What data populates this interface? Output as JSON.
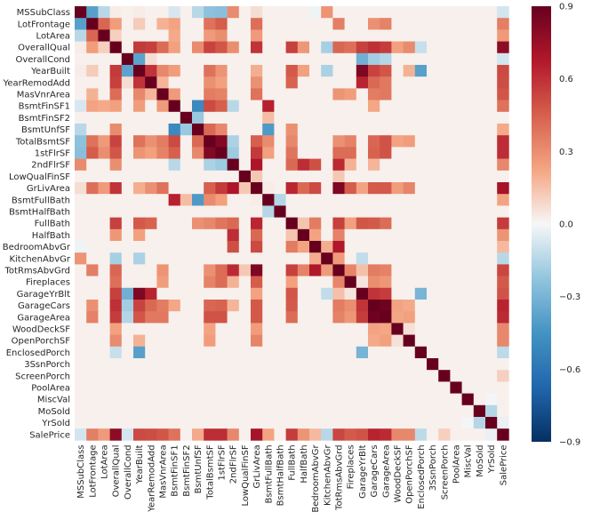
{
  "chart_data": {
    "type": "heatmap",
    "title": "",
    "xlabel": "",
    "ylabel": "",
    "labels": [
      "MSSubClass",
      "LotFrontage",
      "LotArea",
      "OverallQual",
      "OverallCond",
      "YearBuilt",
      "YearRemodAdd",
      "MasVnrArea",
      "BsmtFinSF1",
      "BsmtFinSF2",
      "BsmtUnfSF",
      "TotalBsmtSF",
      "1stFlrSF",
      "2ndFlrSF",
      "LowQualFinSF",
      "GrLivArea",
      "BsmtFullBath",
      "BsmtHalfBath",
      "FullBath",
      "HalfBath",
      "BedroomAbvGr",
      "KitchenAbvGr",
      "TotRmsAbvGrd",
      "Fireplaces",
      "GarageYrBlt",
      "GarageCars",
      "GarageArea",
      "WoodDeckSF",
      "OpenPorchSF",
      "EnclosedPorch",
      "3SsnPorch",
      "ScreenPorch",
      "PoolArea",
      "MiscVal",
      "MoSold",
      "YrSold",
      "SalePrice"
    ],
    "vmin": -0.9,
    "vmax": 0.9,
    "colormap": "RdBu_r",
    "colorbar_ticks": [
      "0.9",
      "0.6",
      "0.3",
      "0.0",
      "−0.3",
      "−0.6",
      "−0.9"
    ],
    "colorbar_tick_values": [
      0.9,
      0.6,
      0.3,
      0.0,
      -0.3,
      -0.6,
      -0.9
    ],
    "correlations": [
      [
        "MSSubClass",
        "LotFrontage",
        -0.39
      ],
      [
        "MSSubClass",
        "LotArea",
        -0.14
      ],
      [
        "MSSubClass",
        "OverallQual",
        0.03
      ],
      [
        "MSSubClass",
        "YearBuilt",
        0.03
      ],
      [
        "MSSubClass",
        "BsmtFinSF1",
        -0.07
      ],
      [
        "MSSubClass",
        "BsmtUnfSF",
        -0.14
      ],
      [
        "MSSubClass",
        "TotalBsmtSF",
        -0.24
      ],
      [
        "MSSubClass",
        "1stFlrSF",
        -0.25
      ],
      [
        "MSSubClass",
        "2ndFlrSF",
        0.31
      ],
      [
        "MSSubClass",
        "BedroomAbvGr",
        -0.02
      ],
      [
        "MSSubClass",
        "KitchenAbvGr",
        0.28
      ],
      [
        "MSSubClass",
        "GrLivArea",
        0.07
      ],
      [
        "MSSubClass",
        "SalePrice",
        -0.08
      ],
      [
        "LotFrontage",
        "LotArea",
        0.43
      ],
      [
        "LotFrontage",
        "OverallQual",
        0.25
      ],
      [
        "LotFrontage",
        "YearBuilt",
        0.12
      ],
      [
        "LotFrontage",
        "MasVnrArea",
        0.19
      ],
      [
        "LotFrontage",
        "BsmtFinSF1",
        0.23
      ],
      [
        "LotFrontage",
        "TotalBsmtSF",
        0.39
      ],
      [
        "LotFrontage",
        "1stFlrSF",
        0.46
      ],
      [
        "LotFrontage",
        "GrLivArea",
        0.4
      ],
      [
        "LotFrontage",
        "TotRmsAbvGrd",
        0.35
      ],
      [
        "LotFrontage",
        "GarageCars",
        0.29
      ],
      [
        "LotFrontage",
        "GarageArea",
        0.34
      ],
      [
        "LotFrontage",
        "SalePrice",
        0.35
      ],
      [
        "LotArea",
        "OverallQual",
        0.11
      ],
      [
        "LotArea",
        "BsmtFinSF1",
        0.21
      ],
      [
        "LotArea",
        "TotalBsmtSF",
        0.26
      ],
      [
        "LotArea",
        "1stFlrSF",
        0.3
      ],
      [
        "LotArea",
        "GrLivArea",
        0.26
      ],
      [
        "LotArea",
        "SalePrice",
        0.26
      ],
      [
        "OverallQual",
        "YearBuilt",
        0.57
      ],
      [
        "OverallQual",
        "YearRemodAdd",
        0.55
      ],
      [
        "OverallQual",
        "MasVnrArea",
        0.41
      ],
      [
        "OverallQual",
        "BsmtFinSF1",
        0.24
      ],
      [
        "OverallQual",
        "BsmtUnfSF",
        0.31
      ],
      [
        "OverallQual",
        "TotalBsmtSF",
        0.54
      ],
      [
        "OverallQual",
        "1stFlrSF",
        0.48
      ],
      [
        "OverallQual",
        "2ndFlrSF",
        0.3
      ],
      [
        "OverallQual",
        "GrLivArea",
        0.59
      ],
      [
        "OverallQual",
        "FullBath",
        0.55
      ],
      [
        "OverallQual",
        "HalfBath",
        0.27
      ],
      [
        "OverallQual",
        "KitchenAbvGr",
        -0.18
      ],
      [
        "OverallQual",
        "TotRmsAbvGrd",
        0.43
      ],
      [
        "OverallQual",
        "Fireplaces",
        0.4
      ],
      [
        "OverallQual",
        "GarageYrBlt",
        0.55
      ],
      [
        "OverallQual",
        "GarageCars",
        0.6
      ],
      [
        "OverallQual",
        "GarageArea",
        0.56
      ],
      [
        "OverallQual",
        "WoodDeckSF",
        0.24
      ],
      [
        "OverallQual",
        "OpenPorchSF",
        0.31
      ],
      [
        "OverallQual",
        "EnclosedPorch",
        -0.11
      ],
      [
        "OverallQual",
        "SalePrice",
        0.79
      ],
      [
        "OverallCond",
        "YearBuilt",
        -0.38
      ],
      [
        "OverallCond",
        "YearRemodAdd",
        0.07
      ],
      [
        "OverallCond",
        "GarageYrBlt",
        -0.32
      ],
      [
        "OverallCond",
        "GarageCars",
        -0.19
      ],
      [
        "OverallCond",
        "GarageArea",
        -0.15
      ],
      [
        "OverallCond",
        "SalePrice",
        -0.08
      ],
      [
        "YearBuilt",
        "YearRemodAdd",
        0.59
      ],
      [
        "YearBuilt",
        "MasVnrArea",
        0.32
      ],
      [
        "YearBuilt",
        "BsmtFinSF1",
        0.25
      ],
      [
        "YearBuilt",
        "TotalBsmtSF",
        0.39
      ],
      [
        "YearBuilt",
        "1stFlrSF",
        0.28
      ],
      [
        "YearBuilt",
        "GrLivArea",
        0.2
      ],
      [
        "YearBuilt",
        "FullBath",
        0.47
      ],
      [
        "YearBuilt",
        "HalfBath",
        0.24
      ],
      [
        "YearBuilt",
        "KitchenAbvGr",
        -0.17
      ],
      [
        "YearBuilt",
        "GarageYrBlt",
        0.83
      ],
      [
        "YearBuilt",
        "GarageCars",
        0.54
      ],
      [
        "YearBuilt",
        "GarageArea",
        0.48
      ],
      [
        "YearBuilt",
        "OpenPorchSF",
        0.19
      ],
      [
        "YearBuilt",
        "EnclosedPorch",
        -0.39
      ],
      [
        "YearBuilt",
        "SalePrice",
        0.52
      ],
      [
        "YearRemodAdd",
        "MasVnrArea",
        0.18
      ],
      [
        "YearRemodAdd",
        "TotalBsmtSF",
        0.29
      ],
      [
        "YearRemodAdd",
        "1stFlrSF",
        0.24
      ],
      [
        "YearRemodAdd",
        "GrLivArea",
        0.29
      ],
      [
        "YearRemodAdd",
        "FullBath",
        0.44
      ],
      [
        "YearRemodAdd",
        "GarageYrBlt",
        0.64
      ],
      [
        "YearRemodAdd",
        "GarageCars",
        0.42
      ],
      [
        "YearRemodAdd",
        "GarageArea",
        0.37
      ],
      [
        "YearRemodAdd",
        "SalePrice",
        0.51
      ],
      [
        "MasVnrArea",
        "BsmtFinSF1",
        0.26
      ],
      [
        "MasVnrArea",
        "TotalBsmtSF",
        0.36
      ],
      [
        "MasVnrArea",
        "1stFlrSF",
        0.34
      ],
      [
        "MasVnrArea",
        "GrLivArea",
        0.39
      ],
      [
        "MasVnrArea",
        "TotRmsAbvGrd",
        0.28
      ],
      [
        "MasVnrArea",
        "Fireplaces",
        0.25
      ],
      [
        "MasVnrArea",
        "GarageCars",
        0.36
      ],
      [
        "MasVnrArea",
        "GarageArea",
        0.37
      ],
      [
        "MasVnrArea",
        "SalePrice",
        0.48
      ],
      [
        "BsmtFinSF1",
        "BsmtUnfSF",
        -0.5
      ],
      [
        "BsmtFinSF1",
        "TotalBsmtSF",
        0.52
      ],
      [
        "BsmtFinSF1",
        "1stFlrSF",
        0.45
      ],
      [
        "BsmtFinSF1",
        "2ndFlrSF",
        -0.14
      ],
      [
        "BsmtFinSF1",
        "BsmtFullBath",
        0.65
      ],
      [
        "BsmtFinSF1",
        "GarageCars",
        0.22
      ],
      [
        "BsmtFinSF1",
        "SalePrice",
        0.39
      ],
      [
        "BsmtFinSF2",
        "BsmtUnfSF",
        -0.21
      ],
      [
        "BsmtFinSF2",
        "BsmtFullBath",
        0.16
      ],
      [
        "BsmtUnfSF",
        "TotalBsmtSF",
        0.42
      ],
      [
        "BsmtUnfSF",
        "1stFlrSF",
        0.32
      ],
      [
        "BsmtUnfSF",
        "BsmtFullBath",
        -0.42
      ],
      [
        "BsmtUnfSF",
        "FullBath",
        0.29
      ],
      [
        "BsmtUnfSF",
        "SalePrice",
        0.21
      ],
      [
        "TotalBsmtSF",
        "1stFlrSF",
        0.82
      ],
      [
        "TotalBsmtSF",
        "2ndFlrSF",
        -0.17
      ],
      [
        "TotalBsmtSF",
        "GrLivArea",
        0.45
      ],
      [
        "TotalBsmtSF",
        "BsmtFullBath",
        0.31
      ],
      [
        "TotalBsmtSF",
        "FullBath",
        0.32
      ],
      [
        "TotalBsmtSF",
        "TotRmsAbvGrd",
        0.29
      ],
      [
        "TotalBsmtSF",
        "Fireplaces",
        0.34
      ],
      [
        "TotalBsmtSF",
        "GarageCars",
        0.43
      ],
      [
        "TotalBsmtSF",
        "GarageArea",
        0.49
      ],
      [
        "TotalBsmtSF",
        "WoodDeckSF",
        0.23
      ],
      [
        "TotalBsmtSF",
        "OpenPorchSF",
        0.25
      ],
      [
        "TotalBsmtSF",
        "SalePrice",
        0.61
      ],
      [
        "1stFlrSF",
        "2ndFlrSF",
        -0.2
      ],
      [
        "1stFlrSF",
        "GrLivArea",
        0.57
      ],
      [
        "1stFlrSF",
        "BsmtFullBath",
        0.24
      ],
      [
        "1stFlrSF",
        "FullBath",
        0.38
      ],
      [
        "1stFlrSF",
        "TotRmsAbvGrd",
        0.41
      ],
      [
        "1stFlrSF",
        "Fireplaces",
        0.41
      ],
      [
        "1stFlrSF",
        "GarageCars",
        0.44
      ],
      [
        "1stFlrSF",
        "GarageArea",
        0.49
      ],
      [
        "1stFlrSF",
        "SalePrice",
        0.61
      ],
      [
        "2ndFlrSF",
        "GrLivArea",
        0.69
      ],
      [
        "2ndFlrSF",
        "FullBath",
        0.42
      ],
      [
        "2ndFlrSF",
        "HalfBath",
        0.61
      ],
      [
        "2ndFlrSF",
        "BedroomAbvGr",
        0.5
      ],
      [
        "2ndFlrSF",
        "TotRmsAbvGrd",
        0.62
      ],
      [
        "2ndFlrSF",
        "Fireplaces",
        0.19
      ],
      [
        "2ndFlrSF",
        "GarageCars",
        0.18
      ],
      [
        "2ndFlrSF",
        "SalePrice",
        0.32
      ],
      [
        "LowQualFinSF",
        "GrLivArea",
        0.13
      ],
      [
        "LowQualFinSF",
        "TotRmsAbvGrd",
        0.13
      ],
      [
        "GrLivArea",
        "BsmtFullBath",
        0.03
      ],
      [
        "GrLivArea",
        "FullBath",
        0.63
      ],
      [
        "GrLivArea",
        "HalfBath",
        0.42
      ],
      [
        "GrLivArea",
        "BedroomAbvGr",
        0.52
      ],
      [
        "GrLivArea",
        "TotRmsAbvGrd",
        0.83
      ],
      [
        "GrLivArea",
        "Fireplaces",
        0.46
      ],
      [
        "GrLivArea",
        "GarageYrBlt",
        0.23
      ],
      [
        "GrLivArea",
        "GarageCars",
        0.47
      ],
      [
        "GrLivArea",
        "GarageArea",
        0.47
      ],
      [
        "GrLivArea",
        "WoodDeckSF",
        0.25
      ],
      [
        "GrLivArea",
        "OpenPorchSF",
        0.33
      ],
      [
        "GrLivArea",
        "SalePrice",
        0.71
      ],
      [
        "BsmtFullBath",
        "BsmtHalfBath",
        -0.15
      ],
      [
        "BsmtFullBath",
        "SalePrice",
        0.23
      ],
      [
        "FullBath",
        "HalfBath",
        0.14
      ],
      [
        "FullBath",
        "BedroomAbvGr",
        0.36
      ],
      [
        "FullBath",
        "TotRmsAbvGrd",
        0.55
      ],
      [
        "FullBath",
        "Fireplaces",
        0.24
      ],
      [
        "FullBath",
        "GarageYrBlt",
        0.48
      ],
      [
        "FullBath",
        "GarageCars",
        0.47
      ],
      [
        "FullBath",
        "GarageArea",
        0.41
      ],
      [
        "FullBath",
        "SalePrice",
        0.56
      ],
      [
        "HalfBath",
        "BedroomAbvGr",
        0.23
      ],
      [
        "HalfBath",
        "TotRmsAbvGrd",
        0.34
      ],
      [
        "HalfBath",
        "SalePrice",
        0.28
      ],
      [
        "BedroomAbvGr",
        "KitchenAbvGr",
        0.2
      ],
      [
        "BedroomAbvGr",
        "TotRmsAbvGrd",
        0.68
      ],
      [
        "BedroomAbvGr",
        "SalePrice",
        0.17
      ],
      [
        "KitchenAbvGr",
        "TotRmsAbvGrd",
        0.26
      ],
      [
        "KitchenAbvGr",
        "GarageYrBlt",
        -0.12
      ],
      [
        "KitchenAbvGr",
        "SalePrice",
        -0.14
      ],
      [
        "TotRmsAbvGrd",
        "Fireplaces",
        0.33
      ],
      [
        "TotRmsAbvGrd",
        "GarageYrBlt",
        0.15
      ],
      [
        "TotRmsAbvGrd",
        "GarageCars",
        0.36
      ],
      [
        "TotRmsAbvGrd",
        "GarageArea",
        0.34
      ],
      [
        "TotRmsAbvGrd",
        "SalePrice",
        0.53
      ],
      [
        "Fireplaces",
        "GarageYrBlt",
        0.05
      ],
      [
        "Fireplaces",
        "GarageCars",
        0.3
      ],
      [
        "Fireplaces",
        "GarageArea",
        0.27
      ],
      [
        "Fireplaces",
        "SalePrice",
        0.47
      ],
      [
        "GarageYrBlt",
        "GarageCars",
        0.59
      ],
      [
        "GarageYrBlt",
        "GarageArea",
        0.56
      ],
      [
        "GarageYrBlt",
        "EnclosedPorch",
        -0.3
      ],
      [
        "GarageYrBlt",
        "SalePrice",
        0.49
      ],
      [
        "GarageCars",
        "GarageArea",
        0.88
      ],
      [
        "GarageCars",
        "WoodDeckSF",
        0.23
      ],
      [
        "GarageCars",
        "OpenPorchSF",
        0.21
      ],
      [
        "GarageCars",
        "SalePrice",
        0.64
      ],
      [
        "GarageArea",
        "WoodDeckSF",
        0.22
      ],
      [
        "GarageArea",
        "OpenPorchSF",
        0.24
      ],
      [
        "GarageArea",
        "SalePrice",
        0.62
      ],
      [
        "WoodDeckSF",
        "OpenPorchSF",
        0.06
      ],
      [
        "WoodDeckSF",
        "SalePrice",
        0.32
      ],
      [
        "OpenPorchSF",
        "SalePrice",
        0.32
      ],
      [
        "EnclosedPorch",
        "SalePrice",
        -0.13
      ],
      [
        "ScreenPorch",
        "SalePrice",
        0.11
      ],
      [
        "YrSold",
        "MiscVal",
        -0.01
      ],
      [
        "YrSold",
        "MoSold",
        -0.15
      ],
      [
        "YrSold",
        "SalePrice",
        -0.03
      ]
    ]
  }
}
